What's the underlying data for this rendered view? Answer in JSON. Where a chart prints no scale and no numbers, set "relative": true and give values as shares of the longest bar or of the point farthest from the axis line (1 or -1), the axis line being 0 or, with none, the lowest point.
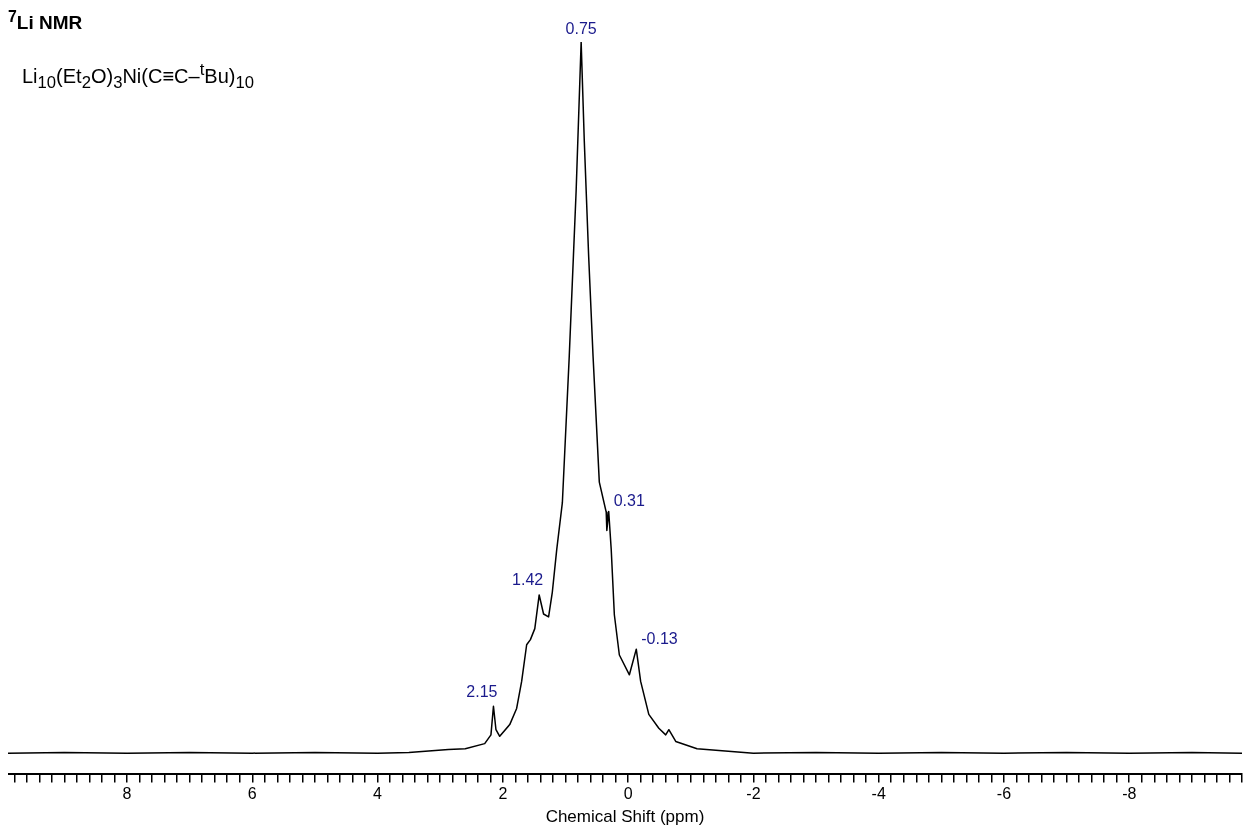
{
  "chart_data": {
    "type": "line",
    "title": "$^{7}$Li NMR",
    "subtitle": "Li$_{10}$(Et$_{2}$O)$_{3}$Ni(C≡C–$^{t}$Bu)$_{10}$",
    "xlabel": "Chemical Shift (ppm)",
    "relative": true,
    "grid": false,
    "legend": false,
    "marker": "none",
    "line_style": "solid",
    "xlim": [
      9.9,
      -9.8
    ],
    "xticks": [
      {
        "value": 9.8,
        "label": null
      },
      {
        "value": 9.6,
        "label": null
      },
      {
        "value": 9.4,
        "label": null
      },
      {
        "value": 9.2,
        "label": null
      },
      {
        "value": 9,
        "label": null
      },
      {
        "value": 8.8,
        "label": null
      },
      {
        "value": 8.6,
        "label": null
      },
      {
        "value": 8.4,
        "label": null
      },
      {
        "value": 8.2,
        "label": null
      },
      8,
      {
        "value": 7.8,
        "label": null
      },
      {
        "value": 7.6,
        "label": null
      },
      {
        "value": 7.4,
        "label": null
      },
      {
        "value": 7.2,
        "label": null
      },
      {
        "value": 7,
        "label": null
      },
      {
        "value": 6.8,
        "label": null
      },
      {
        "value": 6.6,
        "label": null
      },
      {
        "value": 6.4,
        "label": null
      },
      {
        "value": 6.2,
        "label": null
      },
      6,
      {
        "value": 5.8,
        "label": null
      },
      {
        "value": 5.6,
        "label": null
      },
      {
        "value": 5.4,
        "label": null
      },
      {
        "value": 5.2,
        "label": null
      },
      {
        "value": 5,
        "label": null
      },
      {
        "value": 4.8,
        "label": null
      },
      {
        "value": 4.6,
        "label": null
      },
      {
        "value": 4.4,
        "label": null
      },
      {
        "value": 4.2,
        "label": null
      },
      4,
      {
        "value": 3.8,
        "label": null
      },
      {
        "value": 3.6,
        "label": null
      },
      {
        "value": 3.4,
        "label": null
      },
      {
        "value": 3.2,
        "label": null
      },
      {
        "value": 3,
        "label": null
      },
      {
        "value": 2.8,
        "label": null
      },
      {
        "value": 2.6,
        "label": null
      },
      {
        "value": 2.4,
        "label": null
      },
      {
        "value": 2.2,
        "label": null
      },
      2,
      {
        "value": 1.8,
        "label": null
      },
      {
        "value": 1.6,
        "label": null
      },
      {
        "value": 1.4,
        "label": null
      },
      {
        "value": 1.2,
        "label": null
      },
      {
        "value": 1,
        "label": null
      },
      {
        "value": 0.8,
        "label": null
      },
      {
        "value": 0.6,
        "label": null
      },
      {
        "value": 0.4,
        "label": null
      },
      {
        "value": 0.2,
        "label": null
      },
      0,
      {
        "value": -0.2,
        "label": null
      },
      {
        "value": -0.4,
        "label": null
      },
      {
        "value": -0.6,
        "label": null
      },
      {
        "value": -0.8,
        "label": null
      },
      {
        "value": -1,
        "label": null
      },
      {
        "value": -1.2,
        "label": null
      },
      {
        "value": -1.4,
        "label": null
      },
      {
        "value": -1.6,
        "label": null
      },
      {
        "value": -1.8,
        "label": null
      },
      -2,
      {
        "value": -2.2,
        "label": null
      },
      {
        "value": -2.4,
        "label": null
      },
      {
        "value": -2.6,
        "label": null
      },
      {
        "value": -2.8,
        "label": null
      },
      {
        "value": -3,
        "label": null
      },
      {
        "value": -3.2,
        "label": null
      },
      {
        "value": -3.4,
        "label": null
      },
      {
        "value": -3.6,
        "label": null
      },
      {
        "value": -3.8,
        "label": null
      },
      -4,
      {
        "value": -4.2,
        "label": null
      },
      {
        "value": -4.4,
        "label": null
      },
      {
        "value": -4.6,
        "label": null
      },
      {
        "value": -4.8,
        "label": null
      },
      {
        "value": -5,
        "label": null
      },
      {
        "value": -5.2,
        "label": null
      },
      {
        "value": -5.4,
        "label": null
      },
      {
        "value": -5.6,
        "label": null
      },
      {
        "value": -5.8,
        "label": null
      },
      -6,
      {
        "value": -6.2,
        "label": null
      },
      {
        "value": -6.4,
        "label": null
      },
      {
        "value": -6.6,
        "label": null
      },
      {
        "value": -6.8,
        "label": null
      },
      {
        "value": -7,
        "label": null
      },
      {
        "value": -7.2,
        "label": null
      },
      {
        "value": -7.4,
        "label": null
      },
      {
        "value": -7.6,
        "label": null
      },
      {
        "value": -7.8,
        "label": null
      },
      -8,
      {
        "value": -8.2,
        "label": null
      },
      {
        "value": -8.4,
        "label": null
      },
      {
        "value": -8.6,
        "label": null
      },
      {
        "value": -8.8,
        "label": null
      },
      {
        "value": -9,
        "label": null
      },
      {
        "value": -9.2,
        "label": null
      },
      {
        "value": -9.4,
        "label": null
      },
      {
        "value": -9.6,
        "label": null
      },
      {
        "value": -9.8,
        "label": null
      }
    ],
    "series": [
      {
        "color": "#000000",
        "x": [
          9.9,
          9.0,
          8.0,
          7.0,
          6.0,
          5.0,
          4.0,
          3.5,
          2.87,
          2.6,
          2.29,
          2.19,
          2.15,
          2.11,
          2.05,
          1.89,
          1.78,
          1.7,
          1.62,
          1.56,
          1.49,
          1.42,
          1.35,
          1.27,
          1.21,
          1.14,
          1.05,
          0.94,
          0.83,
          0.75,
          0.7,
          0.63,
          0.56,
          0.46,
          0.35,
          0.34,
          0.31,
          0.27,
          0.22,
          0.14,
          -0.02,
          -0.13,
          -0.2,
          -0.33,
          -0.49,
          -0.6,
          -0.65,
          -0.76,
          -1.1,
          -2,
          -3,
          -4,
          -5,
          -6,
          -7,
          -8,
          -9,
          -9.8
        ],
        "values": [
          0.029,
          0.03,
          0.029,
          0.03,
          0.029,
          0.03,
          0.029,
          0.03,
          0.034,
          0.035,
          0.042,
          0.054,
          0.093,
          0.061,
          0.052,
          0.068,
          0.09,
          0.127,
          0.177,
          0.184,
          0.199,
          0.245,
          0.219,
          0.215,
          0.249,
          0.307,
          0.371,
          0.571,
          0.797,
          1,
          0.865,
          0.707,
          0.571,
          0.399,
          0.358,
          0.333,
          0.359,
          0.307,
          0.218,
          0.163,
          0.136,
          0.171,
          0.127,
          0.082,
          0.063,
          0.054,
          0.061,
          0.045,
          0.035,
          0.029,
          0.03,
          0.029,
          0.03,
          0.029,
          0.03,
          0.029,
          0.03,
          0.029
        ]
      }
    ],
    "annotations": [
      {
        "text": "0.75",
        "x": 0.75,
        "y": 1
      },
      {
        "text": "0.31",
        "x": 0.31,
        "y": 0.359
      },
      {
        "text": "1.42",
        "x": 1.42,
        "y": 0.245
      },
      {
        "text": "-0.13",
        "x": -0.13,
        "y": 0.171
      },
      {
        "text": "2.15",
        "x": 2.15,
        "y": 0.093
      }
    ]
  }
}
